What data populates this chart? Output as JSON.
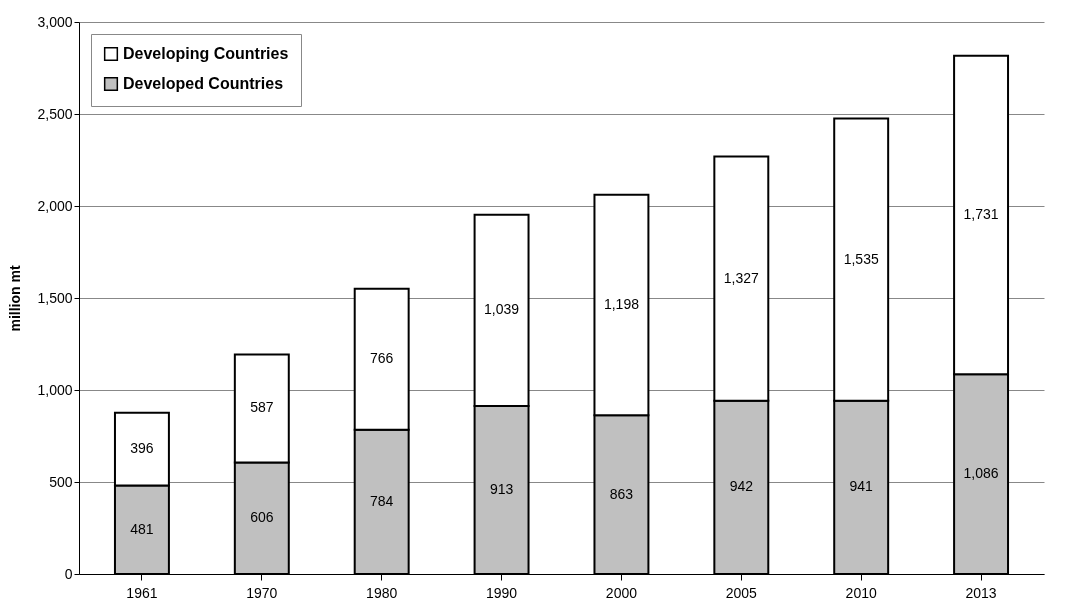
{
  "chart_data": {
    "type": "bar",
    "stacked": true,
    "ylabel": "million mt",
    "categories": [
      "1961",
      "1970",
      "1980",
      "1990",
      "2000",
      "2005",
      "2010",
      "2013"
    ],
    "series": [
      {
        "name": "Developed Countries",
        "color": "#c0c0c0",
        "values": [
          481,
          606,
          784,
          913,
          863,
          942,
          941,
          1086
        ],
        "value_labels": [
          "481",
          "606",
          "784",
          "913",
          "863",
          "942",
          "941",
          "1,086"
        ]
      },
      {
        "name": "Developing Countries",
        "color": "#ffffff",
        "values": [
          396,
          587,
          766,
          1039,
          1198,
          1327,
          1535,
          1731
        ],
        "value_labels": [
          "396",
          "587",
          "766",
          "1,039",
          "1,198",
          "1,327",
          "1,535",
          "1,731"
        ]
      }
    ],
    "ylim": [
      0,
      3000
    ],
    "yticks": [
      0,
      {
        "value": 500,
        "label": "500"
      },
      {
        "value": 1000,
        "label": "1,000"
      },
      {
        "value": 1500,
        "label": "1,500"
      },
      {
        "value": 2000,
        "label": "2,000"
      },
      {
        "value": 2500,
        "label": "2,500"
      },
      {
        "value": 3000,
        "label": "3,000"
      }
    ],
    "grid": "y",
    "legend": "top left"
  }
}
